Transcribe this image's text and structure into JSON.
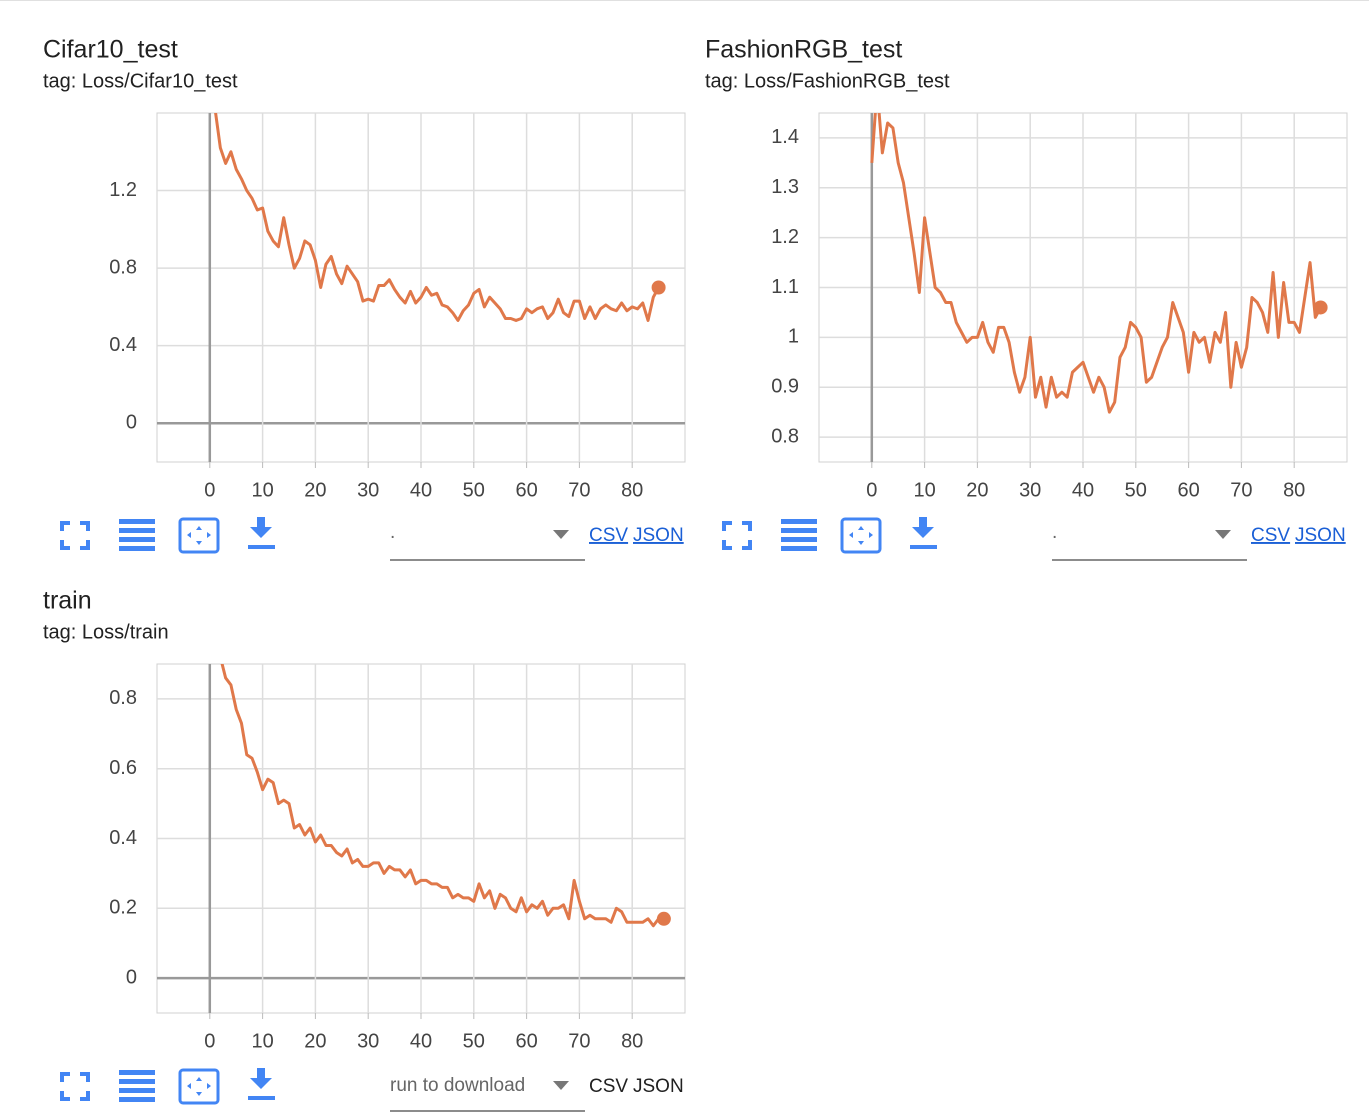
{
  "chart_data": [
    {
      "type": "line",
      "title": "Cifar10_test",
      "subtitle": "tag: Loss/Cifar10_test",
      "x": [
        1,
        2,
        3,
        4,
        5,
        6,
        7,
        8,
        9,
        10,
        11,
        12,
        13,
        14,
        15,
        16,
        17,
        18,
        19,
        20,
        21,
        22,
        23,
        24,
        25,
        26,
        27,
        28,
        29,
        30,
        31,
        32,
        33,
        34,
        35,
        36,
        37,
        38,
        39,
        40,
        41,
        42,
        43,
        44,
        45,
        46,
        47,
        48,
        49,
        50,
        51,
        52,
        53,
        54,
        55,
        56,
        57,
        58,
        59,
        60,
        61,
        62,
        63,
        64,
        65,
        66,
        67,
        68,
        69,
        70,
        71,
        72,
        73,
        74,
        75,
        76,
        77,
        78,
        79,
        80,
        81,
        82,
        83,
        84,
        85
      ],
      "series": [
        {
          "color": "#e0784a",
          "values": [
            1.62,
            1.42,
            1.34,
            1.4,
            1.31,
            1.26,
            1.2,
            1.16,
            1.1,
            1.11,
            0.99,
            0.94,
            0.91,
            1.06,
            0.92,
            0.8,
            0.85,
            0.94,
            0.92,
            0.84,
            0.7,
            0.82,
            0.86,
            0.77,
            0.72,
            0.81,
            0.77,
            0.73,
            0.63,
            0.64,
            0.63,
            0.71,
            0.71,
            0.74,
            0.69,
            0.65,
            0.62,
            0.68,
            0.62,
            0.65,
            0.7,
            0.66,
            0.67,
            0.61,
            0.6,
            0.57,
            0.53,
            0.58,
            0.61,
            0.67,
            0.69,
            0.6,
            0.65,
            0.62,
            0.59,
            0.54,
            0.54,
            0.53,
            0.54,
            0.59,
            0.57,
            0.59,
            0.6,
            0.54,
            0.57,
            0.64,
            0.57,
            0.55,
            0.63,
            0.63,
            0.54,
            0.6,
            0.54,
            0.59,
            0.61,
            0.59,
            0.58,
            0.62,
            0.58,
            0.6,
            0.59,
            0.62,
            0.53,
            0.65,
            0.7
          ]
        }
      ],
      "xlim": [
        -10,
        90
      ],
      "ylim": [
        -0.2,
        1.6
      ],
      "xticks": [
        0,
        10,
        20,
        30,
        40,
        50,
        60,
        70,
        80
      ],
      "yticks": [
        0,
        0.4,
        0.8,
        1.2
      ],
      "grid": true
    },
    {
      "type": "line",
      "title": "FashionRGB_test",
      "subtitle": "tag: Loss/FashionRGB_test",
      "x": [
        0,
        1,
        2,
        3,
        4,
        5,
        6,
        7,
        8,
        9,
        10,
        11,
        12,
        13,
        14,
        15,
        16,
        17,
        18,
        19,
        20,
        21,
        22,
        23,
        24,
        25,
        26,
        27,
        28,
        29,
        30,
        31,
        32,
        33,
        34,
        35,
        36,
        37,
        38,
        39,
        40,
        41,
        42,
        43,
        44,
        45,
        46,
        47,
        48,
        49,
        50,
        51,
        52,
        53,
        54,
        55,
        56,
        57,
        58,
        59,
        60,
        61,
        62,
        63,
        64,
        65,
        66,
        67,
        68,
        69,
        70,
        71,
        72,
        73,
        74,
        75,
        76,
        77,
        78,
        79,
        80,
        81,
        82,
        83,
        84,
        85
      ],
      "series": [
        {
          "color": "#e0784a",
          "values": [
            1.35,
            1.5,
            1.37,
            1.43,
            1.42,
            1.35,
            1.31,
            1.24,
            1.17,
            1.09,
            1.24,
            1.17,
            1.1,
            1.09,
            1.07,
            1.07,
            1.03,
            1.01,
            0.99,
            1,
            1,
            1.03,
            0.99,
            0.97,
            1.02,
            1.02,
            0.99,
            0.93,
            0.89,
            0.92,
            1,
            0.88,
            0.92,
            0.86,
            0.92,
            0.88,
            0.89,
            0.88,
            0.93,
            0.94,
            0.95,
            0.92,
            0.89,
            0.92,
            0.9,
            0.85,
            0.87,
            0.96,
            0.98,
            1.03,
            1.02,
            1,
            0.91,
            0.92,
            0.95,
            0.98,
            1,
            1.07,
            1.04,
            1.01,
            0.93,
            1.01,
            0.99,
            1,
            0.95,
            1.01,
            0.99,
            1.05,
            0.9,
            0.99,
            0.94,
            0.98,
            1.08,
            1.07,
            1.05,
            1.01,
            1.13,
            1,
            1.11,
            1.03,
            1.03,
            1.01,
            1.08,
            1.15,
            1.04,
            1.06
          ]
        }
      ],
      "xlim": [
        -10,
        90
      ],
      "ylim": [
        0.75,
        1.45
      ],
      "xticks": [
        0,
        10,
        20,
        30,
        40,
        50,
        60,
        70,
        80
      ],
      "yticks": [
        0.8,
        0.9,
        1,
        1.1,
        1.2,
        1.3,
        1.4
      ],
      "grid": true
    },
    {
      "type": "line",
      "title": "train",
      "subtitle": "tag: Loss/train",
      "x": [
        2,
        3,
        4,
        5,
        6,
        7,
        8,
        9,
        10,
        11,
        12,
        13,
        14,
        15,
        16,
        17,
        18,
        19,
        20,
        21,
        22,
        23,
        24,
        25,
        26,
        27,
        28,
        29,
        30,
        31,
        32,
        33,
        34,
        35,
        36,
        37,
        38,
        39,
        40,
        41,
        42,
        43,
        44,
        45,
        46,
        47,
        48,
        49,
        50,
        51,
        52,
        53,
        54,
        55,
        56,
        57,
        58,
        59,
        60,
        61,
        62,
        63,
        64,
        65,
        66,
        67,
        68,
        69,
        70,
        71,
        72,
        73,
        74,
        75,
        76,
        77,
        78,
        79,
        80,
        81,
        82,
        83,
        84,
        85,
        86
      ],
      "series": [
        {
          "color": "#e0784a",
          "values": [
            0.92,
            0.86,
            0.84,
            0.77,
            0.73,
            0.64,
            0.63,
            0.59,
            0.54,
            0.57,
            0.56,
            0.5,
            0.51,
            0.5,
            0.43,
            0.44,
            0.41,
            0.43,
            0.39,
            0.41,
            0.38,
            0.38,
            0.36,
            0.35,
            0.37,
            0.33,
            0.34,
            0.32,
            0.32,
            0.33,
            0.33,
            0.3,
            0.32,
            0.31,
            0.31,
            0.29,
            0.31,
            0.27,
            0.28,
            0.28,
            0.27,
            0.27,
            0.26,
            0.26,
            0.23,
            0.24,
            0.23,
            0.23,
            0.22,
            0.27,
            0.23,
            0.25,
            0.2,
            0.24,
            0.23,
            0.2,
            0.19,
            0.23,
            0.19,
            0.21,
            0.2,
            0.22,
            0.18,
            0.2,
            0.2,
            0.21,
            0.17,
            0.28,
            0.22,
            0.17,
            0.18,
            0.17,
            0.17,
            0.17,
            0.16,
            0.2,
            0.19,
            0.16,
            0.16,
            0.16,
            0.16,
            0.17,
            0.15,
            0.17,
            0.17
          ]
        }
      ],
      "xlim": [
        -10,
        90
      ],
      "ylim": [
        -0.1,
        0.9
      ],
      "xticks": [
        0,
        10,
        20,
        30,
        40,
        50,
        60,
        70,
        80
      ],
      "yticks": [
        0,
        0.2,
        0.4,
        0.6,
        0.8
      ],
      "grid": true
    }
  ],
  "controls": [
    {
      "dropdown": ".",
      "csv": "CSV",
      "json": "JSON"
    },
    {
      "dropdown": ".",
      "csv": "CSV",
      "json": "JSON"
    },
    {
      "dropdown": "run to download",
      "csv": "CSV",
      "json": "JSON"
    }
  ]
}
